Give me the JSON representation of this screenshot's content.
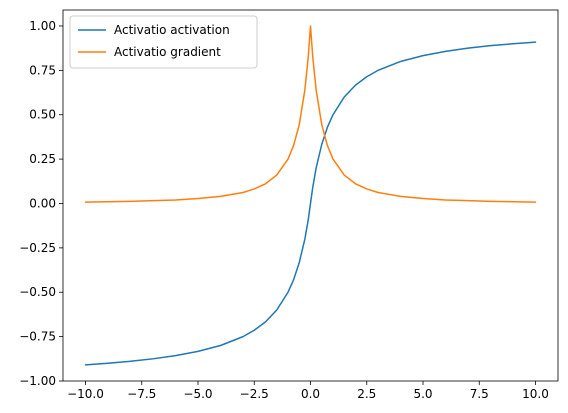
{
  "chart_data": {
    "type": "line",
    "title": "",
    "xlabel": "",
    "ylabel": "",
    "xlim": [
      -11.0,
      11.0
    ],
    "ylim": [
      -1.0,
      1.09
    ],
    "xticks": [
      -10.0,
      -7.5,
      -5.0,
      -2.5,
      0.0,
      2.5,
      5.0,
      7.5,
      10.0
    ],
    "xtick_labels": [
      "−10.0",
      "−7.5",
      "−5.0",
      "−2.5",
      "0.0",
      "2.5",
      "5.0",
      "7.5",
      "10.0"
    ],
    "yticks": [
      -1.0,
      -0.75,
      -0.5,
      -0.25,
      0.0,
      0.25,
      0.5,
      0.75,
      1.0
    ],
    "ytick_labels": [
      "−1.00",
      "−0.75",
      "−0.50",
      "−0.25",
      "0.00",
      "0.25",
      "0.50",
      "0.75",
      "1.00"
    ],
    "grid": false,
    "legend_position": "upper-left",
    "x": [
      -10,
      -9,
      -8,
      -7,
      -6,
      -5,
      -4,
      -3,
      -2.5,
      -2,
      -1.5,
      -1,
      -0.75,
      -0.5,
      -0.25,
      -0.1,
      0,
      0.1,
      0.25,
      0.5,
      0.75,
      1,
      1.5,
      2,
      2.5,
      3,
      4,
      5,
      6,
      7,
      8,
      9,
      10
    ],
    "series": [
      {
        "name": "Activatio activation",
        "color": "#1f77b4",
        "values": [
          -0.909,
          -0.9,
          -0.889,
          -0.875,
          -0.857,
          -0.833,
          -0.8,
          -0.75,
          -0.714,
          -0.667,
          -0.6,
          -0.5,
          -0.429,
          -0.333,
          -0.2,
          -0.091,
          0.0,
          0.091,
          0.2,
          0.333,
          0.429,
          0.5,
          0.6,
          0.667,
          0.714,
          0.75,
          0.8,
          0.833,
          0.857,
          0.875,
          0.889,
          0.9,
          0.909
        ]
      },
      {
        "name": "Activatio gradient",
        "color": "#ff7f0e",
        "values": [
          0.008,
          0.01,
          0.012,
          0.016,
          0.02,
          0.028,
          0.04,
          0.062,
          0.082,
          0.111,
          0.16,
          0.25,
          0.327,
          0.444,
          0.64,
          0.826,
          1.0,
          0.826,
          0.64,
          0.444,
          0.327,
          0.25,
          0.16,
          0.111,
          0.082,
          0.062,
          0.04,
          0.028,
          0.02,
          0.016,
          0.012,
          0.01,
          0.008
        ]
      }
    ]
  }
}
